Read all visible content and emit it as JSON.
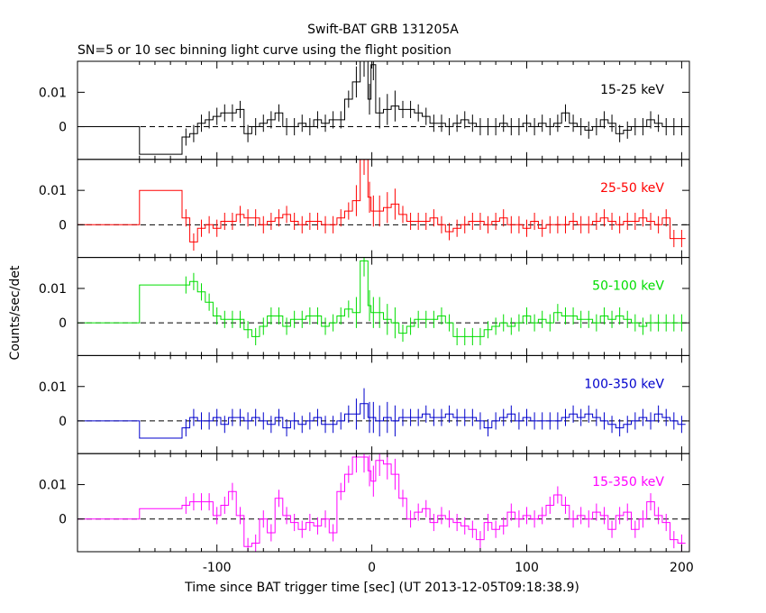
{
  "title": "Swift-BAT GRB 131205A",
  "subtitle": "SN=5 or 10 sec binning light curve using the flight position",
  "xlabel": "Time since BAT trigger time [sec] (UT 2013-12-05T09:18:38.9)",
  "ylabel": "Counts/sec/det",
  "chart_data": {
    "type": "line",
    "style": "step-with-error-bars",
    "xlim": [
      -190,
      205
    ],
    "ylim": [
      -0.0095,
      0.019
    ],
    "x_ticks": [
      -100,
      0,
      100,
      200
    ],
    "x_tick_labels": [
      "-100",
      "0",
      "100",
      "200"
    ],
    "y_ticks": [
      0,
      0.01
    ],
    "y_tick_labels": [
      "0",
      "0.01"
    ],
    "reference_line": 0,
    "x": [
      -190,
      -150,
      -122.5,
      -117.5,
      -112.5,
      -107.5,
      -102.5,
      -97.5,
      -92.5,
      -87.5,
      -82.5,
      -77.5,
      -72.5,
      -67.5,
      -62.5,
      -57.5,
      -52.5,
      -47.5,
      -42.5,
      -37.5,
      -32.5,
      -27.5,
      -22.5,
      -17.5,
      -12.5,
      -7.5,
      -2.5,
      -0.5,
      2.5,
      7.5,
      12.5,
      17.5,
      22.5,
      27.5,
      32.5,
      37.5,
      42.5,
      47.5,
      52.5,
      57.5,
      62.5,
      67.5,
      72.5,
      77.5,
      82.5,
      87.5,
      92.5,
      97.5,
      102.5,
      107.5,
      112.5,
      117.5,
      122.5,
      127.5,
      132.5,
      137.5,
      142.5,
      147.5,
      152.5,
      157.5,
      162.5,
      167.5,
      172.5,
      177.5,
      182.5,
      187.5,
      192.5,
      197.5
    ],
    "series": [
      {
        "name": "15-25 keV",
        "color": "#000000",
        "y": [
          0,
          -0.008,
          -0.003,
          -0.002,
          0.001,
          0.002,
          0.003,
          0.004,
          0.004,
          0.005,
          -0.002,
          0.0,
          0.001,
          0.002,
          0.004,
          0.0,
          0.0,
          0.001,
          0.0,
          0.002,
          0.001,
          0.002,
          0.002,
          0.008,
          0.013,
          0.019,
          0.008,
          0.018,
          0.004,
          0.005,
          0.006,
          0.005,
          0.005,
          0.004,
          0.003,
          0.001,
          0.001,
          0.0,
          0.001,
          0.002,
          0.001,
          0.0,
          0.0,
          0.0,
          0.001,
          0.0,
          0.0,
          0.001,
          0.0,
          0.001,
          0.0,
          0.001,
          0.004,
          0.001,
          0.0,
          -0.001,
          0.0,
          0.002,
          0.001,
          -0.002,
          -0.001,
          0.0,
          0.0,
          0.002,
          0.001,
          0.0,
          0.0,
          0.0
        ]
      },
      {
        "name": "25-50 keV",
        "color": "#ff0000",
        "y": [
          0,
          0.01,
          0.002,
          -0.005,
          -0.001,
          0.0,
          -0.001,
          0.001,
          0.001,
          0.003,
          0.002,
          0.002,
          0.0,
          0.001,
          0.002,
          0.003,
          0.001,
          0.0,
          0.001,
          0.001,
          0.0,
          0.0,
          0.002,
          0.004,
          0.007,
          0.019,
          0.008,
          0.004,
          0.004,
          0.005,
          0.006,
          0.003,
          0.001,
          0.001,
          0.001,
          0.002,
          0.0,
          -0.002,
          -0.001,
          0.0,
          0.001,
          0.001,
          0.0,
          0.001,
          0.002,
          0.0,
          0.0,
          -0.001,
          0.001,
          -0.001,
          0.0,
          0.0,
          0.0,
          0.001,
          0.0,
          0.0,
          0.001,
          0.002,
          0.001,
          0.0,
          0.001,
          0.001,
          0.002,
          0.001,
          0.0,
          0.002,
          -0.004,
          -0.004
        ]
      },
      {
        "name": "50-100 keV",
        "color": "#00dd00",
        "y": [
          0,
          0.011,
          0.011,
          0.012,
          0.009,
          0.006,
          0.002,
          0.001,
          0.001,
          0.001,
          -0.002,
          -0.004,
          -0.001,
          0.002,
          0.002,
          -0.001,
          0.001,
          0.001,
          0.002,
          0.002,
          -0.001,
          0.0,
          0.002,
          0.004,
          0.003,
          0.018,
          0.005,
          0.003,
          0.003,
          0.001,
          0.0,
          -0.003,
          -0.001,
          0.001,
          0.001,
          0.001,
          0.002,
          0.0,
          -0.004,
          -0.004,
          -0.004,
          -0.004,
          -0.002,
          -0.001,
          0.0,
          -0.001,
          0.0,
          0.002,
          0.0,
          0.001,
          0.0,
          0.003,
          0.002,
          0.002,
          0.001,
          0.001,
          0.0,
          0.002,
          0.001,
          0.002,
          0.001,
          0.0,
          -0.001,
          0.0,
          0.0,
          0.0,
          0.0,
          0.0
        ]
      },
      {
        "name": "100-350 keV",
        "color": "#0000cc",
        "y": [
          0,
          -0.005,
          -0.002,
          0.001,
          0.0,
          0.0,
          0.001,
          -0.001,
          0.001,
          0.001,
          0.0,
          0.001,
          0.0,
          -0.001,
          0.001,
          -0.002,
          0.0,
          -0.001,
          0.0,
          0.001,
          -0.001,
          -0.001,
          0.0,
          0.002,
          0.002,
          0.005,
          0.001,
          0.001,
          0.0,
          0.001,
          0.0,
          0.001,
          0.001,
          0.001,
          0.002,
          0.001,
          0.001,
          0.002,
          0.001,
          0.001,
          0.001,
          0.0,
          -0.002,
          0.0,
          0.001,
          0.002,
          0.0,
          0.001,
          0.0,
          0.0,
          0.0,
          0.0,
          0.001,
          0.002,
          0.001,
          0.002,
          0.001,
          0.0,
          -0.001,
          -0.002,
          -0.001,
          0.0,
          0.001,
          0.0,
          0.002,
          0.001,
          0.0,
          -0.001
        ]
      },
      {
        "name": "15-350 keV",
        "color": "#ff00ff",
        "y": [
          0,
          0.003,
          0.004,
          0.005,
          0.005,
          0.005,
          0.001,
          0.004,
          0.008,
          0.001,
          -0.008,
          -0.007,
          0.0,
          -0.004,
          0.006,
          0.001,
          -0.001,
          -0.003,
          -0.001,
          -0.002,
          0.0,
          -0.004,
          0.008,
          0.013,
          0.018,
          0.018,
          0.014,
          0.011,
          0.017,
          0.016,
          0.013,
          0.006,
          0.0,
          0.002,
          0.003,
          -0.001,
          0.001,
          0.0,
          -0.001,
          -0.002,
          -0.003,
          -0.006,
          -0.001,
          -0.003,
          -0.002,
          0.002,
          0.0,
          0.001,
          0.0,
          0.001,
          0.004,
          0.007,
          0.004,
          0.0,
          0.001,
          0.0,
          0.002,
          0.001,
          -0.003,
          0.001,
          0.002,
          -0.003,
          0.0,
          0.005,
          0.001,
          -0.001,
          -0.006,
          -0.007
        ]
      }
    ]
  }
}
